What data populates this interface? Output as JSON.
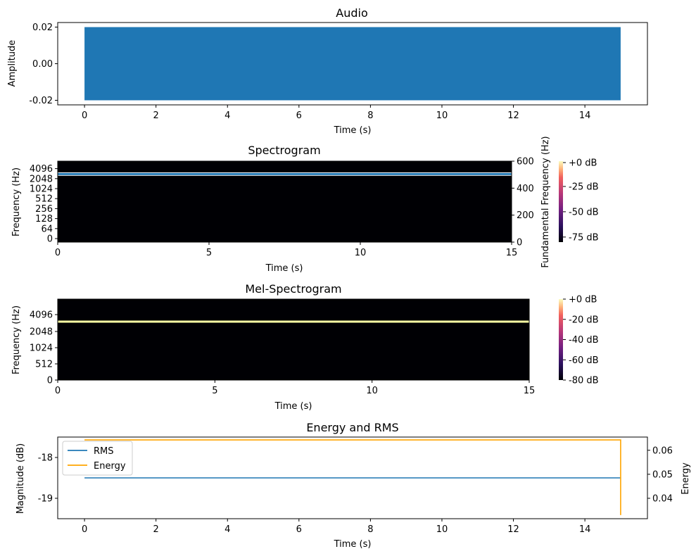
{
  "colors": {
    "audio": "#1f77b4",
    "rms": "#1f77b4",
    "energy": "#ffa500",
    "f0_line": "#1f77b4",
    "spec_background": "#000004",
    "mel_band": "#fcffa4"
  },
  "chart_data": [
    {
      "type": "area",
      "title": "Audio",
      "xlabel": "Time (s)",
      "ylabel": "Amplitude",
      "xlim": [
        -0.75,
        15.75
      ],
      "ylim": [
        -0.0225,
        0.0225
      ],
      "x_ticks": [
        0,
        2,
        4,
        6,
        8,
        10,
        12,
        14
      ],
      "y_ticks": [
        -0.02,
        0.0,
        0.02
      ],
      "y_tick_labels": [
        "-0.02",
        "0.00",
        "0.02"
      ],
      "series": [
        {
          "x_range": [
            0,
            15
          ],
          "envelope": [
            -0.02,
            0.02
          ]
        }
      ],
      "grid": false
    },
    {
      "type": "heatmap",
      "title": "Spectrogram",
      "xlabel": "Time (s)",
      "ylabel": "Frequency (Hz)",
      "y2label": "Fundamental Frequency (Hz)",
      "xlim": [
        0,
        15
      ],
      "x_ticks": [
        0,
        5,
        10,
        15
      ],
      "y_tick_labels": [
        "0",
        "64",
        "128",
        "256",
        "512",
        "1024",
        "2048",
        "4096"
      ],
      "y2_ticks": [
        0,
        200,
        400,
        600
      ],
      "y2lim": [
        0,
        600
      ],
      "f0_series": {
        "x_range": [
          0,
          15
        ],
        "values": [
          497,
          512
        ]
      },
      "colorbar": {
        "ticks": [
          "+0 dB",
          "-25 dB",
          "-50 dB",
          "-75 dB"
        ],
        "values": [
          0,
          -25,
          -50,
          -75
        ],
        "range": [
          -80,
          0
        ]
      },
      "grid": false
    },
    {
      "type": "heatmap",
      "title": "Mel-Spectrogram",
      "xlabel": "Time (s)",
      "ylabel": "Frequency (Hz)",
      "xlim": [
        0,
        15
      ],
      "x_ticks": [
        0,
        5,
        10,
        15
      ],
      "y_tick_labels": [
        "0",
        "512",
        "1024",
        "2048",
        "4096"
      ],
      "band_frequency_hz": 3000,
      "colorbar": {
        "ticks": [
          "+0 dB",
          "-20 dB",
          "-40 dB",
          "-60 dB",
          "-80 dB"
        ],
        "values": [
          0,
          -20,
          -40,
          -60,
          -80
        ],
        "range": [
          -80,
          0
        ]
      },
      "grid": false
    },
    {
      "type": "line",
      "title": "Energy and RMS",
      "xlabel": "Time (s)",
      "ylabel": "Magnitude (dB)",
      "y2label": "Energy",
      "xlim": [
        -0.75,
        15.75
      ],
      "ylim": [
        -19.5,
        -17.5
      ],
      "y2lim": [
        0.0315,
        0.0655
      ],
      "x_ticks": [
        0,
        2,
        4,
        6,
        8,
        10,
        12,
        14
      ],
      "y_ticks": [
        -18,
        -19
      ],
      "y2_ticks": [
        0.04,
        0.05,
        0.06
      ],
      "series": [
        {
          "name": "RMS",
          "axis": "left",
          "x": [
            0,
            15
          ],
          "values": [
            -18.5,
            -18.5
          ]
        },
        {
          "name": "Energy",
          "axis": "right",
          "x": [
            0,
            15,
            15
          ],
          "values": [
            0.0643,
            0.0643,
            0.033
          ]
        }
      ],
      "legend": "upper-left",
      "grid": false
    }
  ]
}
